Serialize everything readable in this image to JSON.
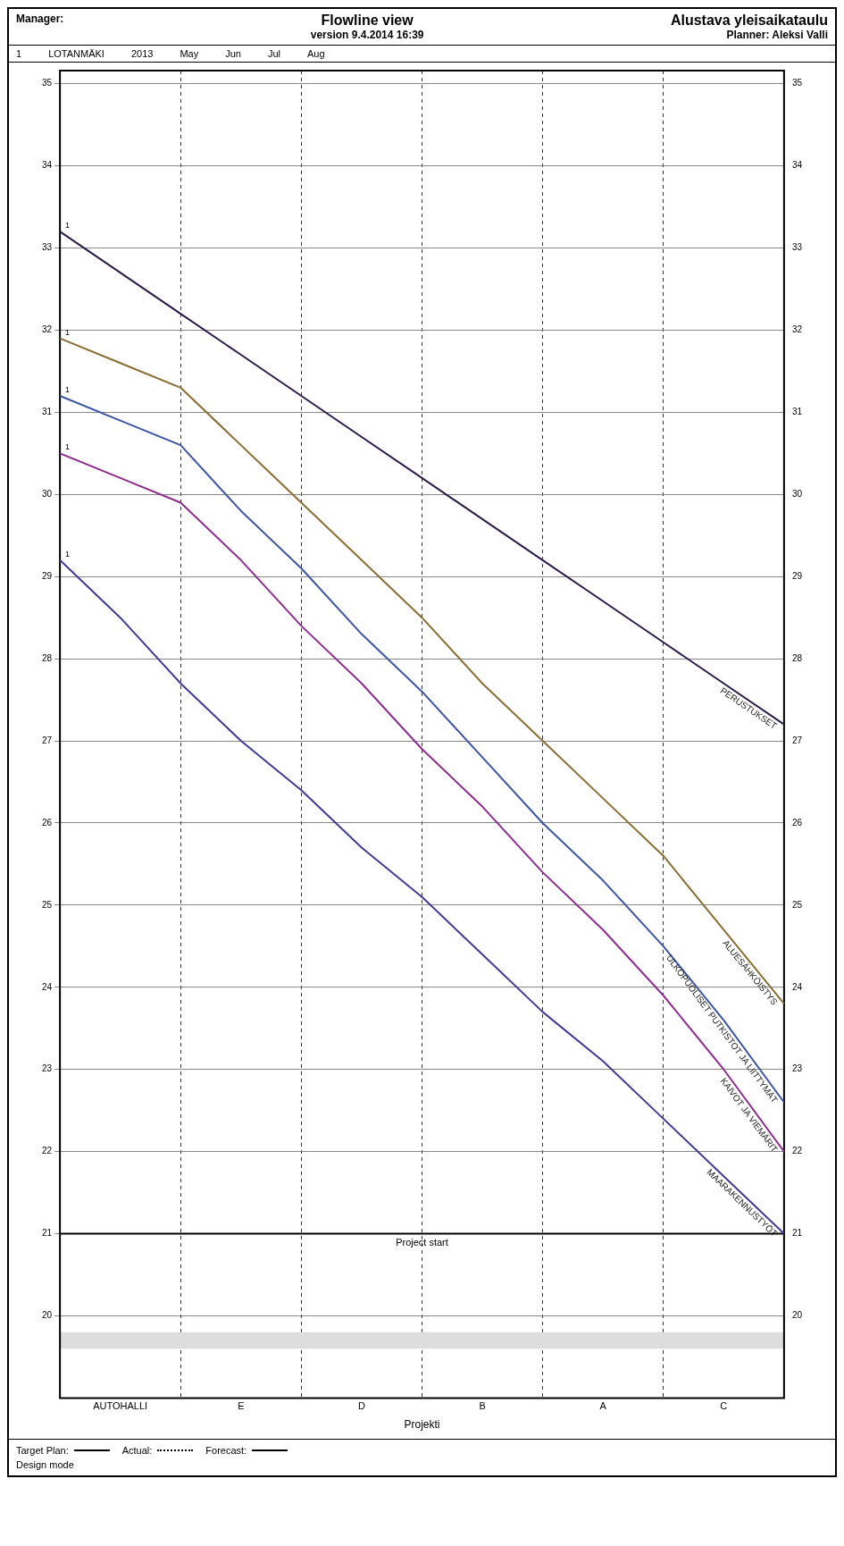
{
  "chart_data": {
    "type": "line",
    "title": "Flowline view",
    "subtitle": "version 9.4.2014 16:39",
    "xlabel": "Projekti",
    "categories": [
      null,
      "AUTOHALLI",
      null,
      "E",
      null,
      "D",
      null,
      "B",
      null,
      "A",
      null,
      "C",
      null
    ],
    "series": [
      {
        "name": "MAARAKENNUSTYÖT",
        "color": "#3f3a95",
        "values": [
          29.2,
          28.5,
          27.7,
          27.0,
          26.4,
          25.7,
          25.1,
          24.4,
          23.7,
          23.1,
          22.4,
          21.7,
          21.0
        ]
      },
      {
        "name": "KAIVOT JA VIEMÄRIT",
        "color": "#8e2c90",
        "values": [
          30.5,
          30.2,
          29.9,
          29.2,
          28.4,
          27.7,
          26.9,
          26.2,
          25.4,
          24.7,
          23.9,
          23.0,
          22.0
        ]
      },
      {
        "name": "ULKOPUOLISET PUTKISTOT JA LIITTYMÄT",
        "color": "#3c55a5",
        "values": [
          31.2,
          30.9,
          30.6,
          29.8,
          29.1,
          28.3,
          27.6,
          26.8,
          26.0,
          25.3,
          24.5,
          23.6,
          22.6
        ]
      },
      {
        "name": "ALUESÄHKÖISTYS",
        "color": "#8a6d33",
        "values": [
          31.9,
          31.6,
          31.3,
          30.6,
          29.9,
          29.2,
          28.5,
          27.7,
          27.0,
          26.3,
          25.6,
          24.7,
          23.8
        ]
      },
      {
        "name": "PERUSTUKSET",
        "color": "#2b1a4a",
        "values": [
          33.2,
          32.7,
          32.2,
          31.7,
          31.2,
          30.7,
          30.2,
          29.7,
          29.2,
          28.7,
          28.2,
          27.7,
          27.2
        ]
      }
    ],
    "ylim": [
      19,
      35.16
    ],
    "yticks": [
      20,
      21,
      22,
      23,
      24,
      25,
      26,
      27,
      28,
      29,
      30,
      31,
      32,
      33,
      34,
      35
    ],
    "y2lim": [
      19,
      35.16
    ],
    "y2ticks": [
      20,
      21,
      22,
      23,
      24,
      25,
      26,
      27,
      28,
      29,
      30,
      31,
      32,
      33,
      34,
      35
    ],
    "ref_lines": [
      {
        "axis": "y",
        "value": 21,
        "label": "Project start",
        "color": "#000000"
      }
    ],
    "bands": [
      {
        "axis": "y",
        "from": 19.6,
        "to": 19.8,
        "color": "#dddddd"
      }
    ],
    "grid": true,
    "legend": false,
    "marker": "none",
    "line_style": "solid",
    "annotations": [
      "Alustava yleisaikataulu",
      "Planner: Aleksi Valli",
      "Manager:",
      "LOTANMÄKI",
      "1",
      "2013",
      "Target Plan:",
      "Actual:",
      "Forecast:",
      "Design mode",
      "May",
      "Jun",
      "Jul",
      "Aug",
      {
        "text": "1",
        "y": 29.2
      },
      {
        "text": "1",
        "y": 30.5
      },
      {
        "text": "1",
        "y": 31.2
      },
      {
        "text": "1",
        "y": 31.9
      },
      {
        "text": "1",
        "y": 33.2
      }
    ]
  }
}
